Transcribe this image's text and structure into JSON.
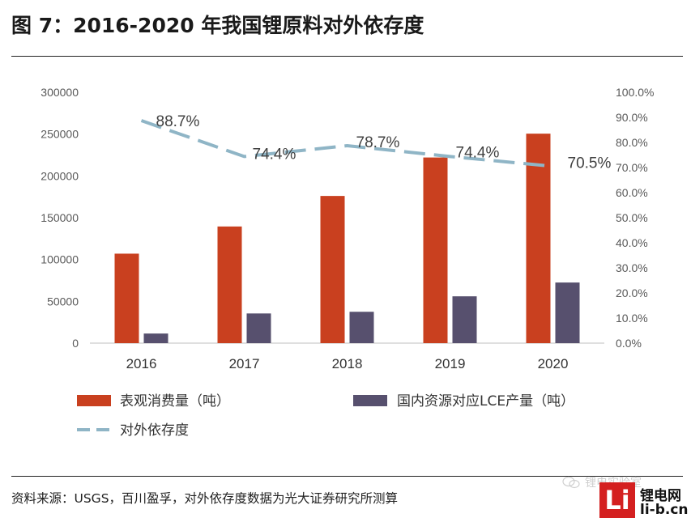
{
  "figure": {
    "title": "图 7：2016-2020 年我国锂原料对外依存度",
    "source": "资料来源：USGS，百川盈孚，对外依存度数据为光大证券研究所测算"
  },
  "watermark": {
    "text": "锂电实验室",
    "logo_mark": "Li",
    "logo_name": "锂电网",
    "logo_url": "li-b.cn"
  },
  "chart_data": {
    "type": "bar",
    "categories": [
      "2016",
      "2017",
      "2018",
      "2019",
      "2020"
    ],
    "series": [
      {
        "name": "表观消费量（吨）",
        "kind": "bar",
        "axis": "left",
        "color": "#C9401F",
        "values": [
          107000,
          139500,
          176000,
          222000,
          250500
        ]
      },
      {
        "name": "国内资源对应LCE产量（吨）",
        "kind": "bar",
        "axis": "left",
        "color": "#57506E",
        "values": [
          11500,
          35500,
          37500,
          56000,
          72500
        ]
      },
      {
        "name": "对外依存度",
        "kind": "line",
        "style": "dashed",
        "axis": "right",
        "color": "#8FB5C6",
        "values": [
          88.7,
          74.4,
          78.7,
          74.4,
          70.5
        ],
        "labels": [
          "88.7%",
          "74.4%",
          "78.7%",
          "74.4%",
          "70.5%"
        ]
      }
    ],
    "y_left": {
      "min": 0,
      "max": 300000,
      "step": 50000,
      "ticks": [
        "0",
        "50000",
        "100000",
        "150000",
        "200000",
        "250000",
        "300000"
      ]
    },
    "y_right": {
      "min": 0,
      "max": 100,
      "step": 10,
      "ticks": [
        "0.0%",
        "10.0%",
        "20.0%",
        "30.0%",
        "40.0%",
        "50.0%",
        "60.0%",
        "70.0%",
        "80.0%",
        "90.0%",
        "100.0%"
      ]
    },
    "grid": false,
    "legend_position": "bottom"
  }
}
